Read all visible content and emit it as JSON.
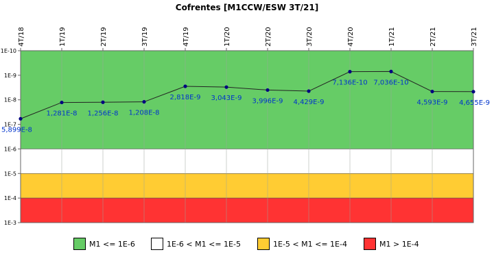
{
  "chart_data": {
    "type": "line",
    "title": "Cofrentes [M1CCW/ESW 3T/21]",
    "x": [
      "4T/18",
      "1T/19",
      "2T/19",
      "3T/19",
      "4T/19",
      "1T/20",
      "2T/20",
      "3T/20",
      "4T/20",
      "1T/21",
      "2T/21",
      "3T/21"
    ],
    "series": [
      {
        "values": [
          5.899e-08,
          1.281e-08,
          1.256e-08,
          1.208e-08,
          2.818e-09,
          3.043e-09,
          3.996e-09,
          4.429e-09,
          7.136e-10,
          7.036e-10,
          4.593e-09,
          4.655e-09
        ],
        "labels": [
          "5,899E-8",
          "1,281E-8",
          "1,256E-8",
          "1,208E-8",
          "2,818E-9",
          "3,043E-9",
          "3,996E-9",
          "4,429E-9",
          "7,136E-10",
          "7,036E-10",
          "4,593E-9",
          "4,655E-9"
        ],
        "color": "#000080"
      }
    ],
    "yscale": "log",
    "yaxis_reversed": true,
    "ylim": [
      1e-10,
      0.001
    ],
    "yticks": [
      "1E-10",
      "1E-9",
      "1E-8",
      "1E-7",
      "1E-6",
      "1E-5",
      "1E-4",
      "1E-3"
    ],
    "bands": [
      {
        "from": 1e-10,
        "to": 1e-06,
        "color": "#66cc66",
        "label": "M1 <= 1E-6"
      },
      {
        "from": 1e-06,
        "to": 1e-05,
        "color": "#ffffff",
        "label": "1E-6 < M1 <= 1E-5"
      },
      {
        "from": 1e-05,
        "to": 0.0001,
        "color": "#ffcc33",
        "label": "1E-5 < M1 <= 1E-4"
      },
      {
        "from": 0.0001,
        "to": 0.001,
        "color": "#ff3333",
        "label": "M1 > 1E-4"
      }
    ],
    "legend_position": "bottom",
    "label_color": "#0033cc"
  }
}
